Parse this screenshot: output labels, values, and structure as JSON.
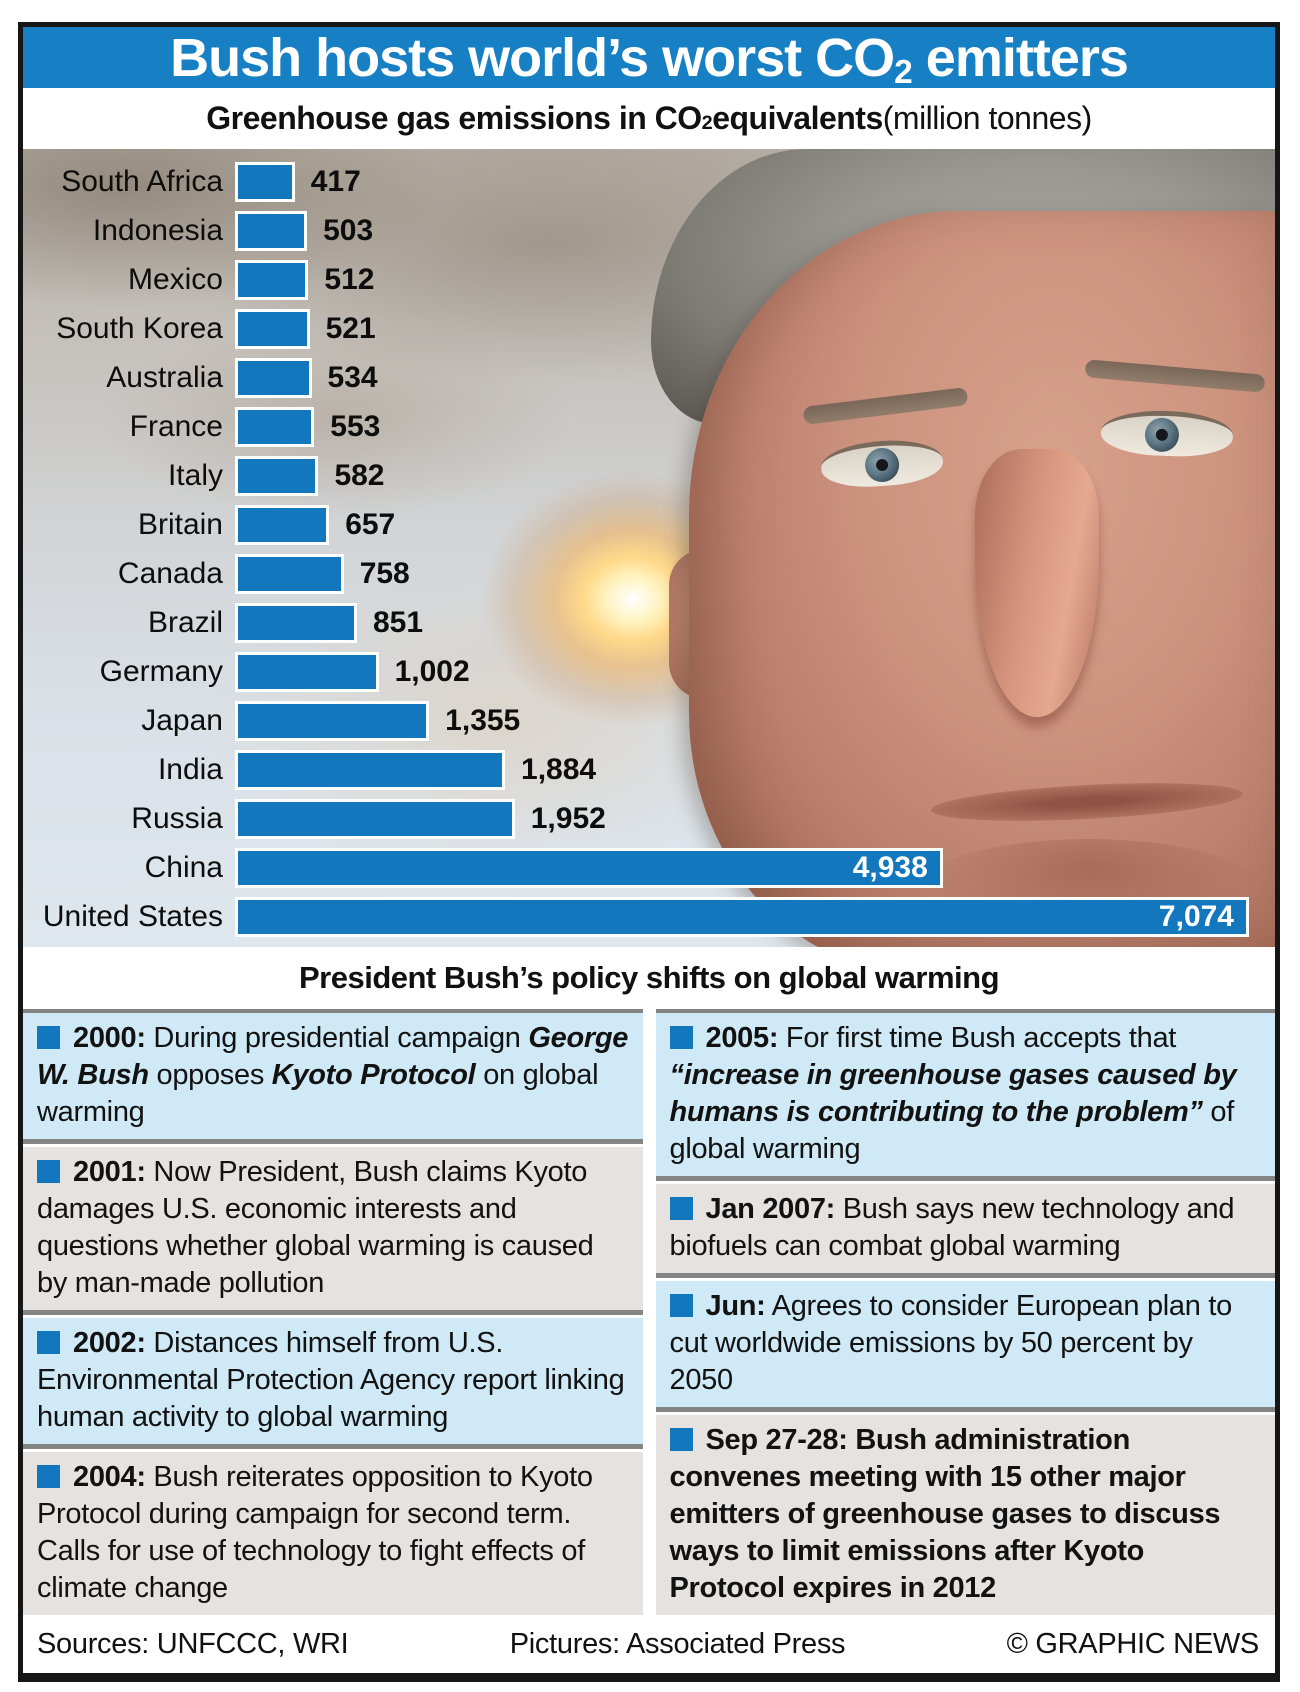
{
  "title": {
    "part1": "Bush hosts world’s worst CO",
    "sub": "2",
    "part2": " emitters"
  },
  "subtitle": {
    "bold1": "Greenhouse gas emissions in CO",
    "sub": "2",
    "bold2": " equivalents",
    "normal": " (million tonnes)"
  },
  "chart_data": {
    "type": "bar",
    "orientation": "horizontal",
    "title": "Greenhouse gas emissions in CO2 equivalents (million tonnes)",
    "unit": "million tonnes CO2 equivalent",
    "categories": [
      "South Africa",
      "Indonesia",
      "Mexico",
      "South Korea",
      "Australia",
      "France",
      "Italy",
      "Britain",
      "Canada",
      "Brazil",
      "Germany",
      "Japan",
      "India",
      "Russia",
      "China",
      "United States"
    ],
    "values": [
      417,
      503,
      512,
      521,
      534,
      553,
      582,
      657,
      758,
      851,
      1002,
      1355,
      1884,
      1952,
      4938,
      7074
    ],
    "display_values": [
      "417",
      "503",
      "512",
      "521",
      "534",
      "553",
      "582",
      "657",
      "758",
      "851",
      "1,002",
      "1,355",
      "1,884",
      "1,952",
      "4,938",
      "7,074"
    ],
    "xlim": [
      0,
      7074
    ],
    "grid": false,
    "legend": false,
    "bar_color": "#1377bd",
    "value_labels_inside": [
      "China",
      "United States"
    ]
  },
  "policy": {
    "heading": "President Bush’s policy shifts on global warming",
    "left_column": [
      {
        "bg": "blue",
        "segments": [
          {
            "style": "bold",
            "text": "2000:"
          },
          {
            "style": "normal",
            "text": " During presidential campaign "
          },
          {
            "style": "bolditalic",
            "text": "George W. Bush"
          },
          {
            "style": "normal",
            "text": " opposes "
          },
          {
            "style": "bolditalic",
            "text": "Kyoto Protocol"
          },
          {
            "style": "normal",
            "text": " on global warming"
          }
        ]
      },
      {
        "bg": "grey",
        "segments": [
          {
            "style": "bold",
            "text": "2001:"
          },
          {
            "style": "normal",
            "text": " Now President, Bush claims Kyoto damages U.S. economic interests and questions whether global warming is caused by man-made pollution"
          }
        ]
      },
      {
        "bg": "blue",
        "segments": [
          {
            "style": "bold",
            "text": "2002:"
          },
          {
            "style": "normal",
            "text": " Distances himself from U.S. Environmental Protection Agency report linking human activity to global warming"
          }
        ]
      },
      {
        "bg": "grey",
        "segments": [
          {
            "style": "bold",
            "text": "2004:"
          },
          {
            "style": "normal",
            "text": " Bush reiterates opposition to Kyoto Protocol during campaign for second term. Calls for use of technology to fight effects of climate change"
          }
        ]
      }
    ],
    "right_column": [
      {
        "bg": "blue",
        "segments": [
          {
            "style": "bold",
            "text": "2005:"
          },
          {
            "style": "normal",
            "text": " For first time Bush accepts that "
          },
          {
            "style": "bolditalic",
            "text": "“increase in greenhouse gases caused by humans is contributing to the problem”"
          },
          {
            "style": "normal",
            "text": " of global warming"
          }
        ]
      },
      {
        "bg": "grey",
        "segments": [
          {
            "style": "bold",
            "text": "Jan 2007:"
          },
          {
            "style": "normal",
            "text": " Bush says new technology and biofuels can combat global warming"
          }
        ]
      },
      {
        "bg": "blue",
        "segments": [
          {
            "style": "bold",
            "text": "Jun:"
          },
          {
            "style": "normal",
            "text": " Agrees to consider European plan to cut worldwide emissions by 50 percent by 2050"
          }
        ]
      },
      {
        "bg": "grey",
        "segments": [
          {
            "style": "bold",
            "text": "Sep 27-28: Bush administration convenes meeting with 15 other major emitters of greenhouse gases to discuss ways to limit emissions after Kyoto Protocol expires in 2012"
          }
        ]
      }
    ]
  },
  "footer": {
    "sources": "Sources: UNFCCC, WRI",
    "pictures": "Pictures: Associated Press",
    "credit": "© GRAPHIC NEWS"
  },
  "colors": {
    "accent_blue": "#1377bd",
    "title_bar_bg": "#1780c5",
    "entry_blue_bg": "#cfe9f6",
    "entry_grey_bg": "#e5e2df",
    "border_black": "#161616",
    "value_text": "#0d0d0d",
    "value_text_inside": "#ffffff"
  }
}
